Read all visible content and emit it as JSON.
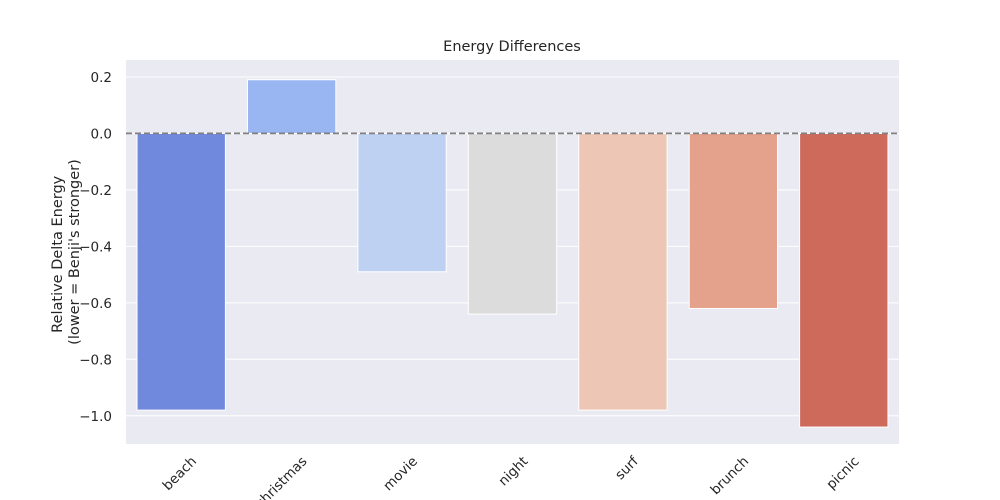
{
  "chart_data": {
    "type": "bar",
    "title": "Energy Differences",
    "xlabel": "",
    "ylabel_lines": [
      "Relative Delta Energy",
      "(lower = Benji's stronger)"
    ],
    "categories": [
      "beach",
      "christmas",
      "movie",
      "night",
      "surf",
      "brunch",
      "picnic"
    ],
    "values": [
      -0.98,
      0.19,
      -0.49,
      -0.64,
      -0.98,
      -0.62,
      -1.04
    ],
    "colors": [
      "#7089dc",
      "#99b5f2",
      "#bfd1f2",
      "#dcdcdc",
      "#edc6b6",
      "#e4a18b",
      "#cd6a5c"
    ],
    "ylim": [
      -1.1,
      0.26
    ],
    "yticks": [
      0.2,
      0.0,
      -0.2,
      -0.4,
      -0.6,
      -0.8,
      -1.0
    ],
    "ytick_labels": [
      "0.2",
      "0.0",
      "−0.2",
      "−0.4",
      "−0.6",
      "−0.8",
      "−1.0"
    ],
    "reference_line": 0,
    "grid": true,
    "background": "#eaeaf2"
  }
}
